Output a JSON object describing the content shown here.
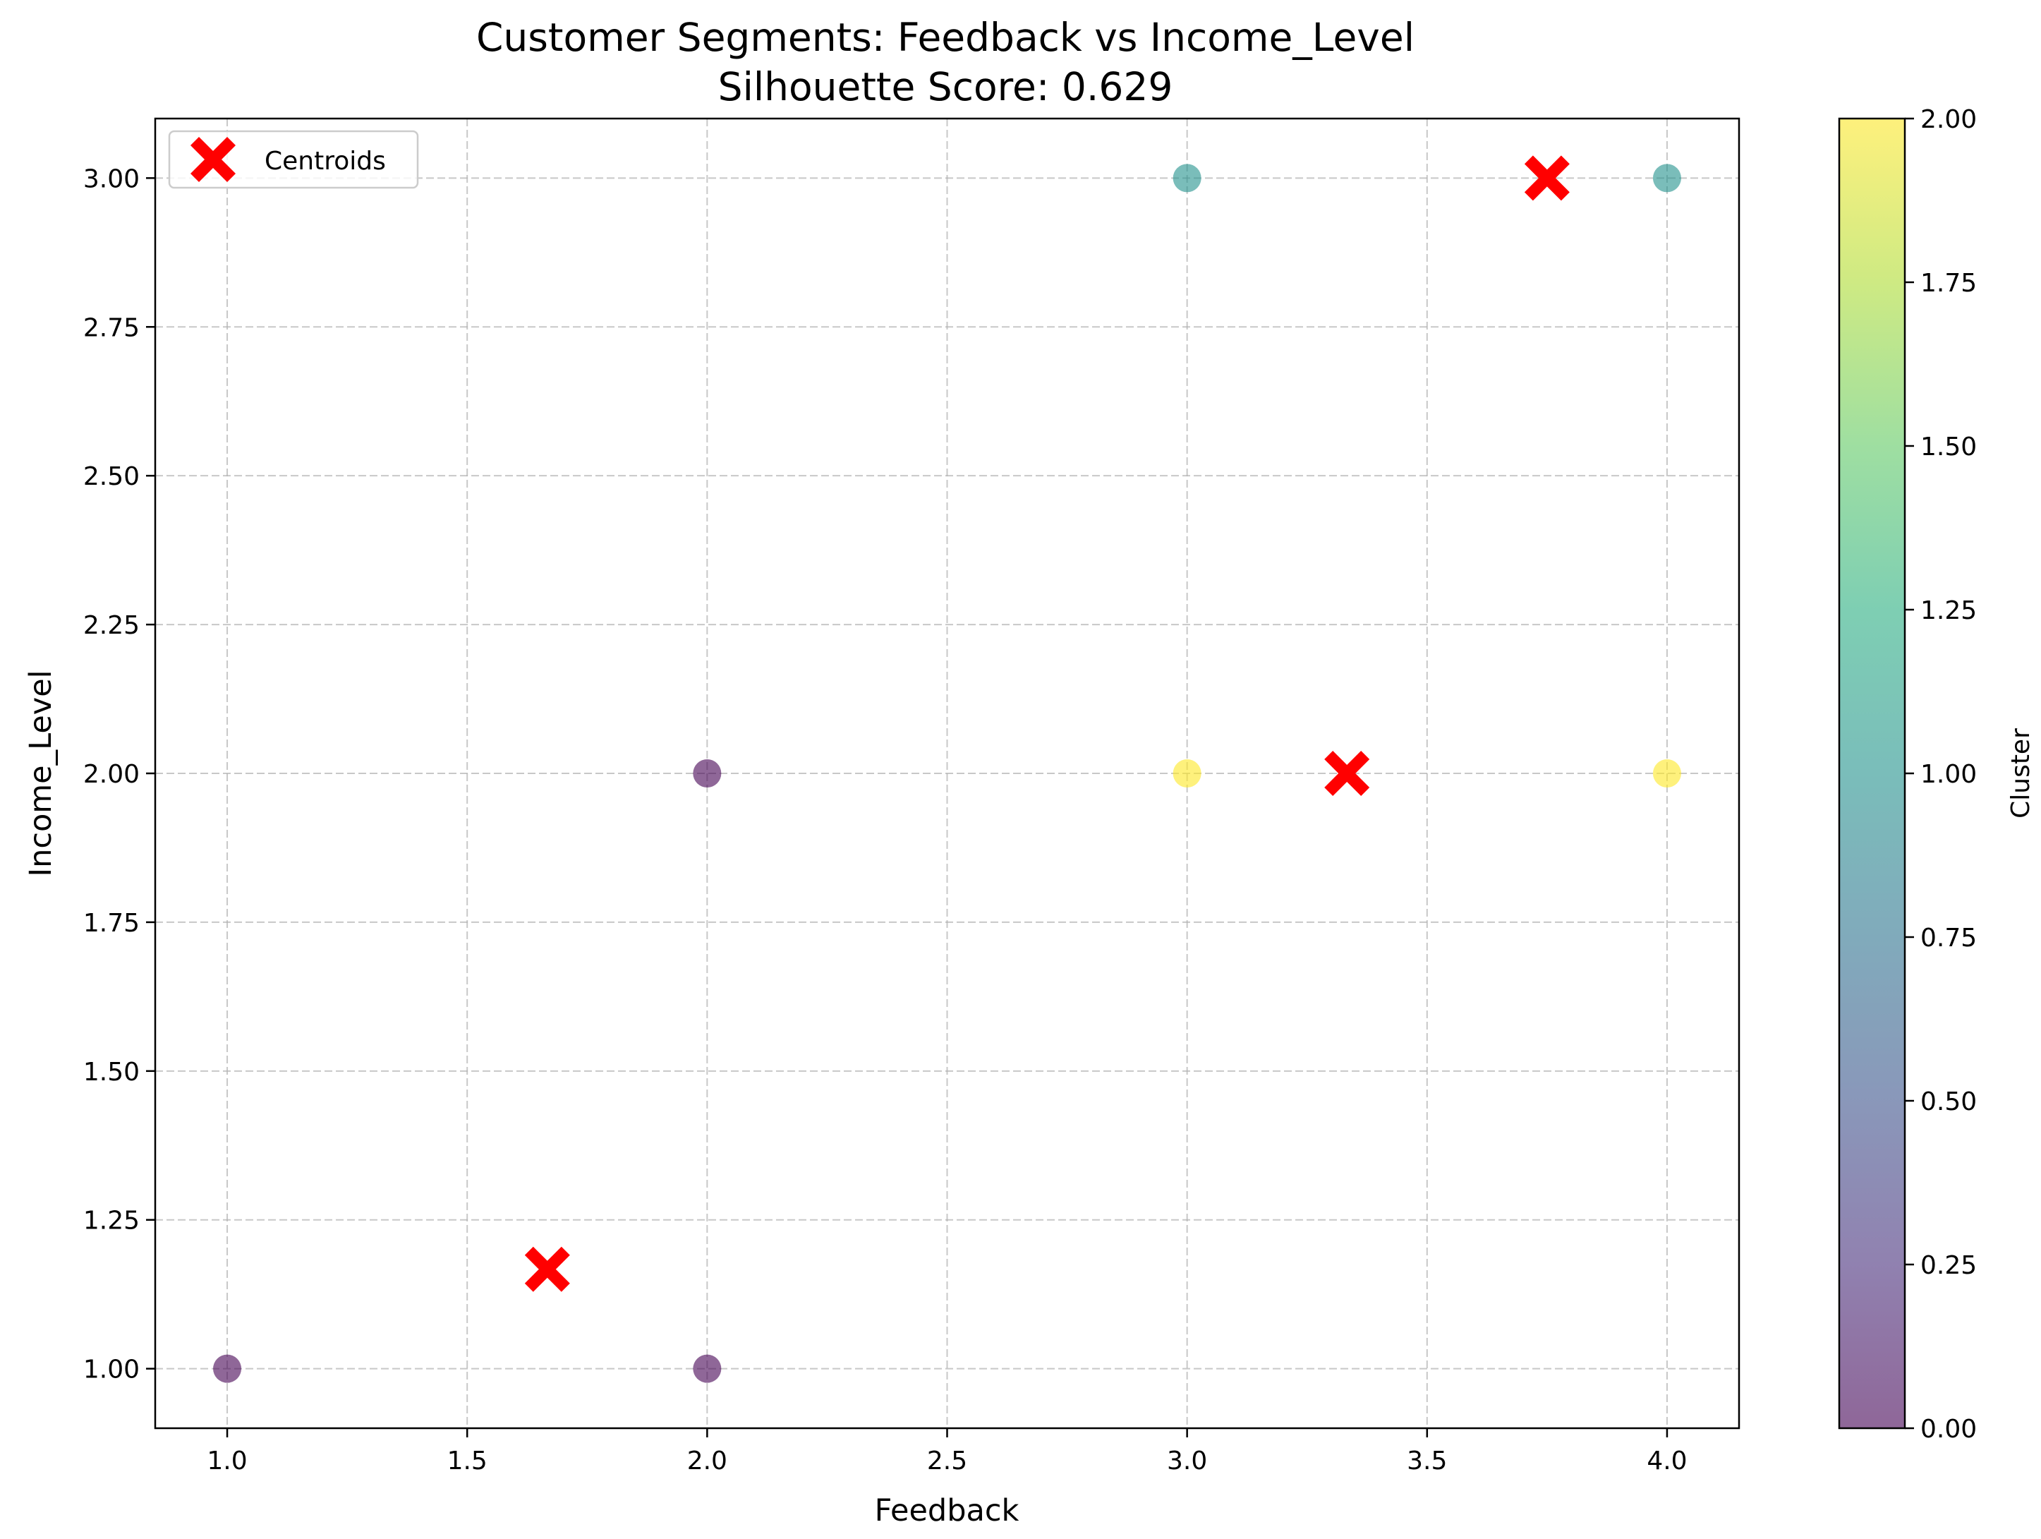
{
  "chart_data": {
    "type": "scatter",
    "title": "Customer Segments: Feedback vs Income_Level",
    "subtitle": "Silhouette Score: 0.629",
    "xlabel": "Feedback",
    "ylabel": "Income_Level",
    "xlim": [
      0.85,
      4.15
    ],
    "ylim": [
      0.9,
      3.1
    ],
    "grid": true,
    "legend": {
      "position": "top-left",
      "entries": [
        "Centroids"
      ]
    },
    "x_ticks": [
      1.0,
      1.5,
      2.0,
      2.5,
      3.0,
      3.5,
      4.0
    ],
    "x_tick_labels": [
      "1.0",
      "1.5",
      "2.0",
      "2.5",
      "3.0",
      "3.5",
      "4.0"
    ],
    "y_ticks": [
      1.0,
      1.25,
      1.5,
      1.75,
      2.0,
      2.25,
      2.5,
      2.75,
      3.0
    ],
    "y_tick_labels": [
      "1.00",
      "1.25",
      "1.50",
      "1.75",
      "2.00",
      "2.25",
      "2.50",
      "2.75",
      "3.00"
    ],
    "points": [
      {
        "x": 1.0,
        "y": 1.0,
        "cluster": 0
      },
      {
        "x": 2.0,
        "y": 1.0,
        "cluster": 0
      },
      {
        "x": 2.0,
        "y": 2.0,
        "cluster": 0
      },
      {
        "x": 3.0,
        "y": 3.0,
        "cluster": 1
      },
      {
        "x": 4.0,
        "y": 3.0,
        "cluster": 1
      },
      {
        "x": 3.0,
        "y": 2.0,
        "cluster": 2
      },
      {
        "x": 4.0,
        "y": 2.0,
        "cluster": 2
      }
    ],
    "centroids": [
      {
        "x": 1.667,
        "y": 1.167
      },
      {
        "x": 3.75,
        "y": 3.0
      },
      {
        "x": 3.333,
        "y": 2.0
      }
    ],
    "colorbar": {
      "label": "Cluster",
      "range": [
        0.0,
        2.0
      ],
      "ticks": [
        0.0,
        0.25,
        0.5,
        0.75,
        1.0,
        1.25,
        1.5,
        1.75,
        2.0
      ],
      "tick_labels": [
        "0.00",
        "0.25",
        "0.50",
        "0.75",
        "1.00",
        "1.25",
        "1.50",
        "1.75",
        "2.00"
      ],
      "colormap": "viridis"
    },
    "colors": {
      "cluster_0": "#440154",
      "cluster_1": "#21918c",
      "cluster_2": "#fde725",
      "centroid": "#ff0000",
      "grid": "#b0b0b0"
    }
  }
}
